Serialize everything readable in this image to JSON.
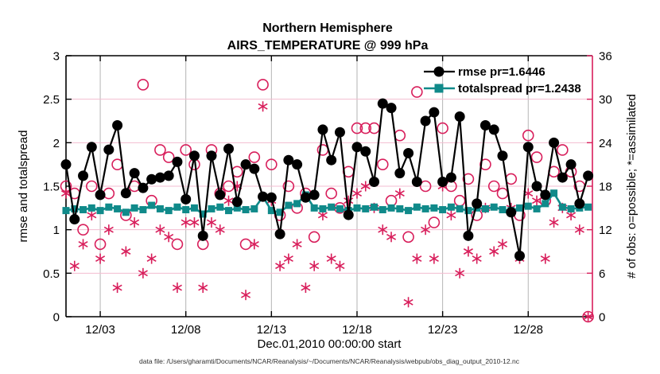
{
  "chart": {
    "title_line1": "Northern Hemisphere",
    "title_line2": "AIRS_TEMPERATURE @ 999 hPa",
    "xlabel": "Dec.01,2010 00:00:00 start",
    "ylabel_left": "rmse and totalspread",
    "ylabel_right": "# of obs: o=possible; *=assimilated",
    "datafile_note": "data file: /Users/gharamti/Documents/NCAR/Reanalysis/~/Documents/NCAR/Reanalysis/webpub/obs_diag_output_2010-12.nc",
    "legend": {
      "rmse_label": "rmse pr=1.6446",
      "totalspread_label": "totalspread pr=1.2438"
    }
  },
  "chart_data": {
    "type": "line",
    "title": "Northern Hemisphere - AIRS_TEMPERATURE @ 999 hPa",
    "x_start": "2010-12-01 00:00:00",
    "x_step_hours": 12,
    "x_axis_range_days": [
      0,
      30.75
    ],
    "x_tick_days": [
      2,
      7,
      12,
      17,
      22,
      27
    ],
    "x_tick_labels": [
      "12/03",
      "12/08",
      "12/13",
      "12/18",
      "12/23",
      "12/28"
    ],
    "left_axis": {
      "label": "rmse and totalspread",
      "range": [
        0,
        3
      ],
      "ticks": [
        0,
        0.5,
        1,
        1.5,
        2,
        2.5,
        3
      ],
      "tick_labels": [
        "0",
        "0.5",
        "1",
        "1.5",
        "2",
        "2.5",
        "3"
      ]
    },
    "right_axis": {
      "label": "# of obs: o=possible; *=assimilated",
      "range": [
        0,
        36
      ],
      "ticks": [
        0,
        6,
        12,
        18,
        24,
        30,
        36
      ],
      "tick_labels": [
        "0",
        "6",
        "12",
        "18",
        "24",
        "30",
        "36"
      ]
    },
    "grid": true,
    "legend_position": "upper-right-inside",
    "colors": {
      "rmse": "#000000",
      "totalspread": "#108a8a",
      "obs": "#d81e5b",
      "grid_x": "#b4b4b4",
      "grid_y": "#f3bdd0"
    },
    "series": [
      {
        "name": "rmse pr=1.6446",
        "style": "line-filled-circle",
        "axis": "left",
        "color": "#000000",
        "values": [
          1.75,
          1.12,
          1.62,
          1.95,
          1.4,
          1.92,
          2.2,
          1.42,
          1.65,
          1.48,
          1.58,
          1.6,
          1.62,
          1.78,
          1.35,
          1.85,
          0.93,
          1.85,
          1.4,
          1.93,
          1.32,
          1.75,
          1.7,
          1.38,
          1.37,
          0.95,
          1.8,
          1.75,
          1.37,
          1.4,
          2.15,
          1.8,
          2.12,
          1.17,
          1.95,
          1.9,
          1.55,
          2.45,
          2.4,
          1.65,
          1.88,
          1.55,
          2.25,
          2.35,
          1.55,
          1.6,
          2.3,
          0.93,
          1.3,
          2.2,
          2.15,
          1.85,
          1.2,
          0.7,
          1.95,
          1.5,
          1.4,
          2.0,
          1.6,
          1.75,
          1.3,
          1.62
        ]
      },
      {
        "name": "totalspread pr=1.2438",
        "style": "line-filled-square",
        "axis": "left",
        "color": "#108a8a",
        "values": [
          1.22,
          1.24,
          1.23,
          1.25,
          1.22,
          1.26,
          1.24,
          1.2,
          1.25,
          1.23,
          1.28,
          1.24,
          1.22,
          1.26,
          1.23,
          1.25,
          1.18,
          1.24,
          1.26,
          1.22,
          1.25,
          1.23,
          1.24,
          1.38,
          1.22,
          1.2,
          1.28,
          1.3,
          1.4,
          1.25,
          1.24,
          1.26,
          1.24,
          1.22,
          1.25,
          1.24,
          1.26,
          1.23,
          1.25,
          1.24,
          1.22,
          1.26,
          1.24,
          1.25,
          1.23,
          1.26,
          1.24,
          1.22,
          1.25,
          1.24,
          1.26,
          1.23,
          1.22,
          1.25,
          1.27,
          1.24,
          1.3,
          1.42,
          1.26,
          1.24,
          1.25,
          1.26
        ]
      },
      {
        "name": "# of obs possible",
        "style": "scatter-open-circle",
        "axis": "right",
        "color": "#d81e5b",
        "values": [
          18,
          17,
          12,
          18,
          10,
          17,
          21,
          14,
          18,
          32,
          16,
          23,
          22,
          10,
          23,
          21,
          10,
          23,
          17,
          18,
          20,
          10,
          22,
          32,
          21,
          14,
          18,
          15,
          17,
          11,
          23,
          17,
          15,
          20,
          26,
          26,
          26,
          21,
          16,
          25,
          11,
          31,
          18,
          13,
          26,
          18,
          16,
          19,
          14,
          21,
          18,
          17,
          19,
          14,
          25,
          22,
          16,
          20,
          23,
          20,
          18,
          0
        ]
      },
      {
        "name": "# of obs assimilated",
        "style": "scatter-asterisk",
        "axis": "right",
        "color": "#d81e5b",
        "values": [
          17,
          7,
          10,
          14,
          8,
          12,
          4,
          9,
          13,
          6,
          8,
          12,
          11,
          4,
          13,
          13,
          4,
          13,
          12,
          16,
          18,
          3,
          10,
          29,
          16,
          7,
          8,
          10,
          4,
          7,
          14,
          8,
          7,
          16,
          17,
          18,
          15,
          12,
          11,
          17,
          2,
          8,
          12,
          8,
          18,
          14,
          6,
          9,
          8,
          15,
          9,
          10,
          15,
          8,
          17,
          16,
          8,
          13,
          15,
          14,
          12,
          0
        ]
      }
    ]
  }
}
